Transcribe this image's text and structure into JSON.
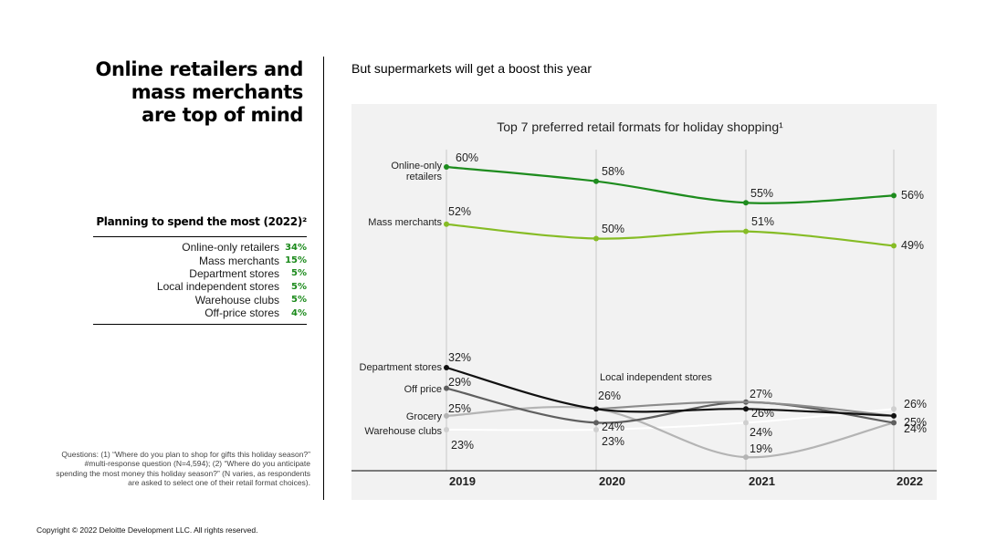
{
  "headline": [
    "Online retailers and",
    "mass merchants",
    "are top of mind"
  ],
  "subheadline": "But supermarkets  will get a boost this year",
  "spending": {
    "title": "Planning to spend the most (2022)²",
    "items": [
      {
        "label": "Online-only retailers",
        "value": "34%"
      },
      {
        "label": "Mass merchants",
        "value": "15%"
      },
      {
        "label": "Department stores",
        "value": "5%"
      },
      {
        "label": "Local independent stores",
        "value": "5%"
      },
      {
        "label": "Warehouse clubs",
        "value": "5%"
      },
      {
        "label": "Off-price stores",
        "value": "4%"
      }
    ]
  },
  "footnote": "Questions: (1) “Where do you plan to shop for gifts this holiday season?” #multi-response question (N=4,594); (2) “Where do you anticipate spending the most money this holiday season?” (N varies, as respondents are asked to select one of their retail format choices).",
  "copyright": "Copyright © 2022 Deloitte Development LLC. All rights reserved.",
  "colors": {
    "dark_green": "#1e8c1e",
    "light_green": "#86bc25",
    "black": "#111111",
    "dark_gray": "#5f5f5f",
    "mid_gray": "#8c8c8c",
    "light_gray": "#b4b4b4",
    "white": "#ffffff",
    "value_green": "#1b8a1b"
  },
  "chart_data": {
    "type": "line",
    "title": "Top 7 preferred retail formats for holiday shopping¹",
    "x": [
      "2019",
      "2020",
      "2021",
      "2022"
    ],
    "series": [
      {
        "name": "Online-only retailers",
        "color": "dark_green",
        "values": [
          60,
          58,
          55,
          56
        ],
        "labels": [
          "60%",
          "58%",
          "55%",
          "56%"
        ]
      },
      {
        "name": "Mass merchants",
        "color": "light_green",
        "values": [
          52,
          50,
          51,
          49
        ],
        "labels": [
          "52%",
          "50%",
          "51%",
          "49%"
        ]
      },
      {
        "name": "Department stores",
        "color": "black",
        "values": [
          32,
          26,
          26,
          25
        ],
        "labels": [
          "32%",
          "",
          "26%",
          "25%"
        ]
      },
      {
        "name": "Off price",
        "color": "dark_gray",
        "values": [
          29,
          24,
          27,
          24
        ],
        "labels": [
          "29%",
          "24%",
          "27%",
          "24%"
        ]
      },
      {
        "name": "Grocery",
        "color": "light_gray",
        "values": [
          25,
          26,
          19,
          24
        ],
        "labels": [
          "25%",
          "26%",
          "19%",
          ""
        ]
      },
      {
        "name": "Warehouse clubs",
        "color": "white",
        "values": [
          23,
          23,
          24,
          26
        ],
        "labels": [
          "23%",
          "23%",
          "24%",
          "26%"
        ]
      },
      {
        "name": "Local independent stores",
        "color": "mid_gray",
        "values": [
          null,
          26,
          27,
          25
        ],
        "labels": [
          "",
          "",
          "",
          ""
        ]
      }
    ],
    "grid": "vertical"
  }
}
